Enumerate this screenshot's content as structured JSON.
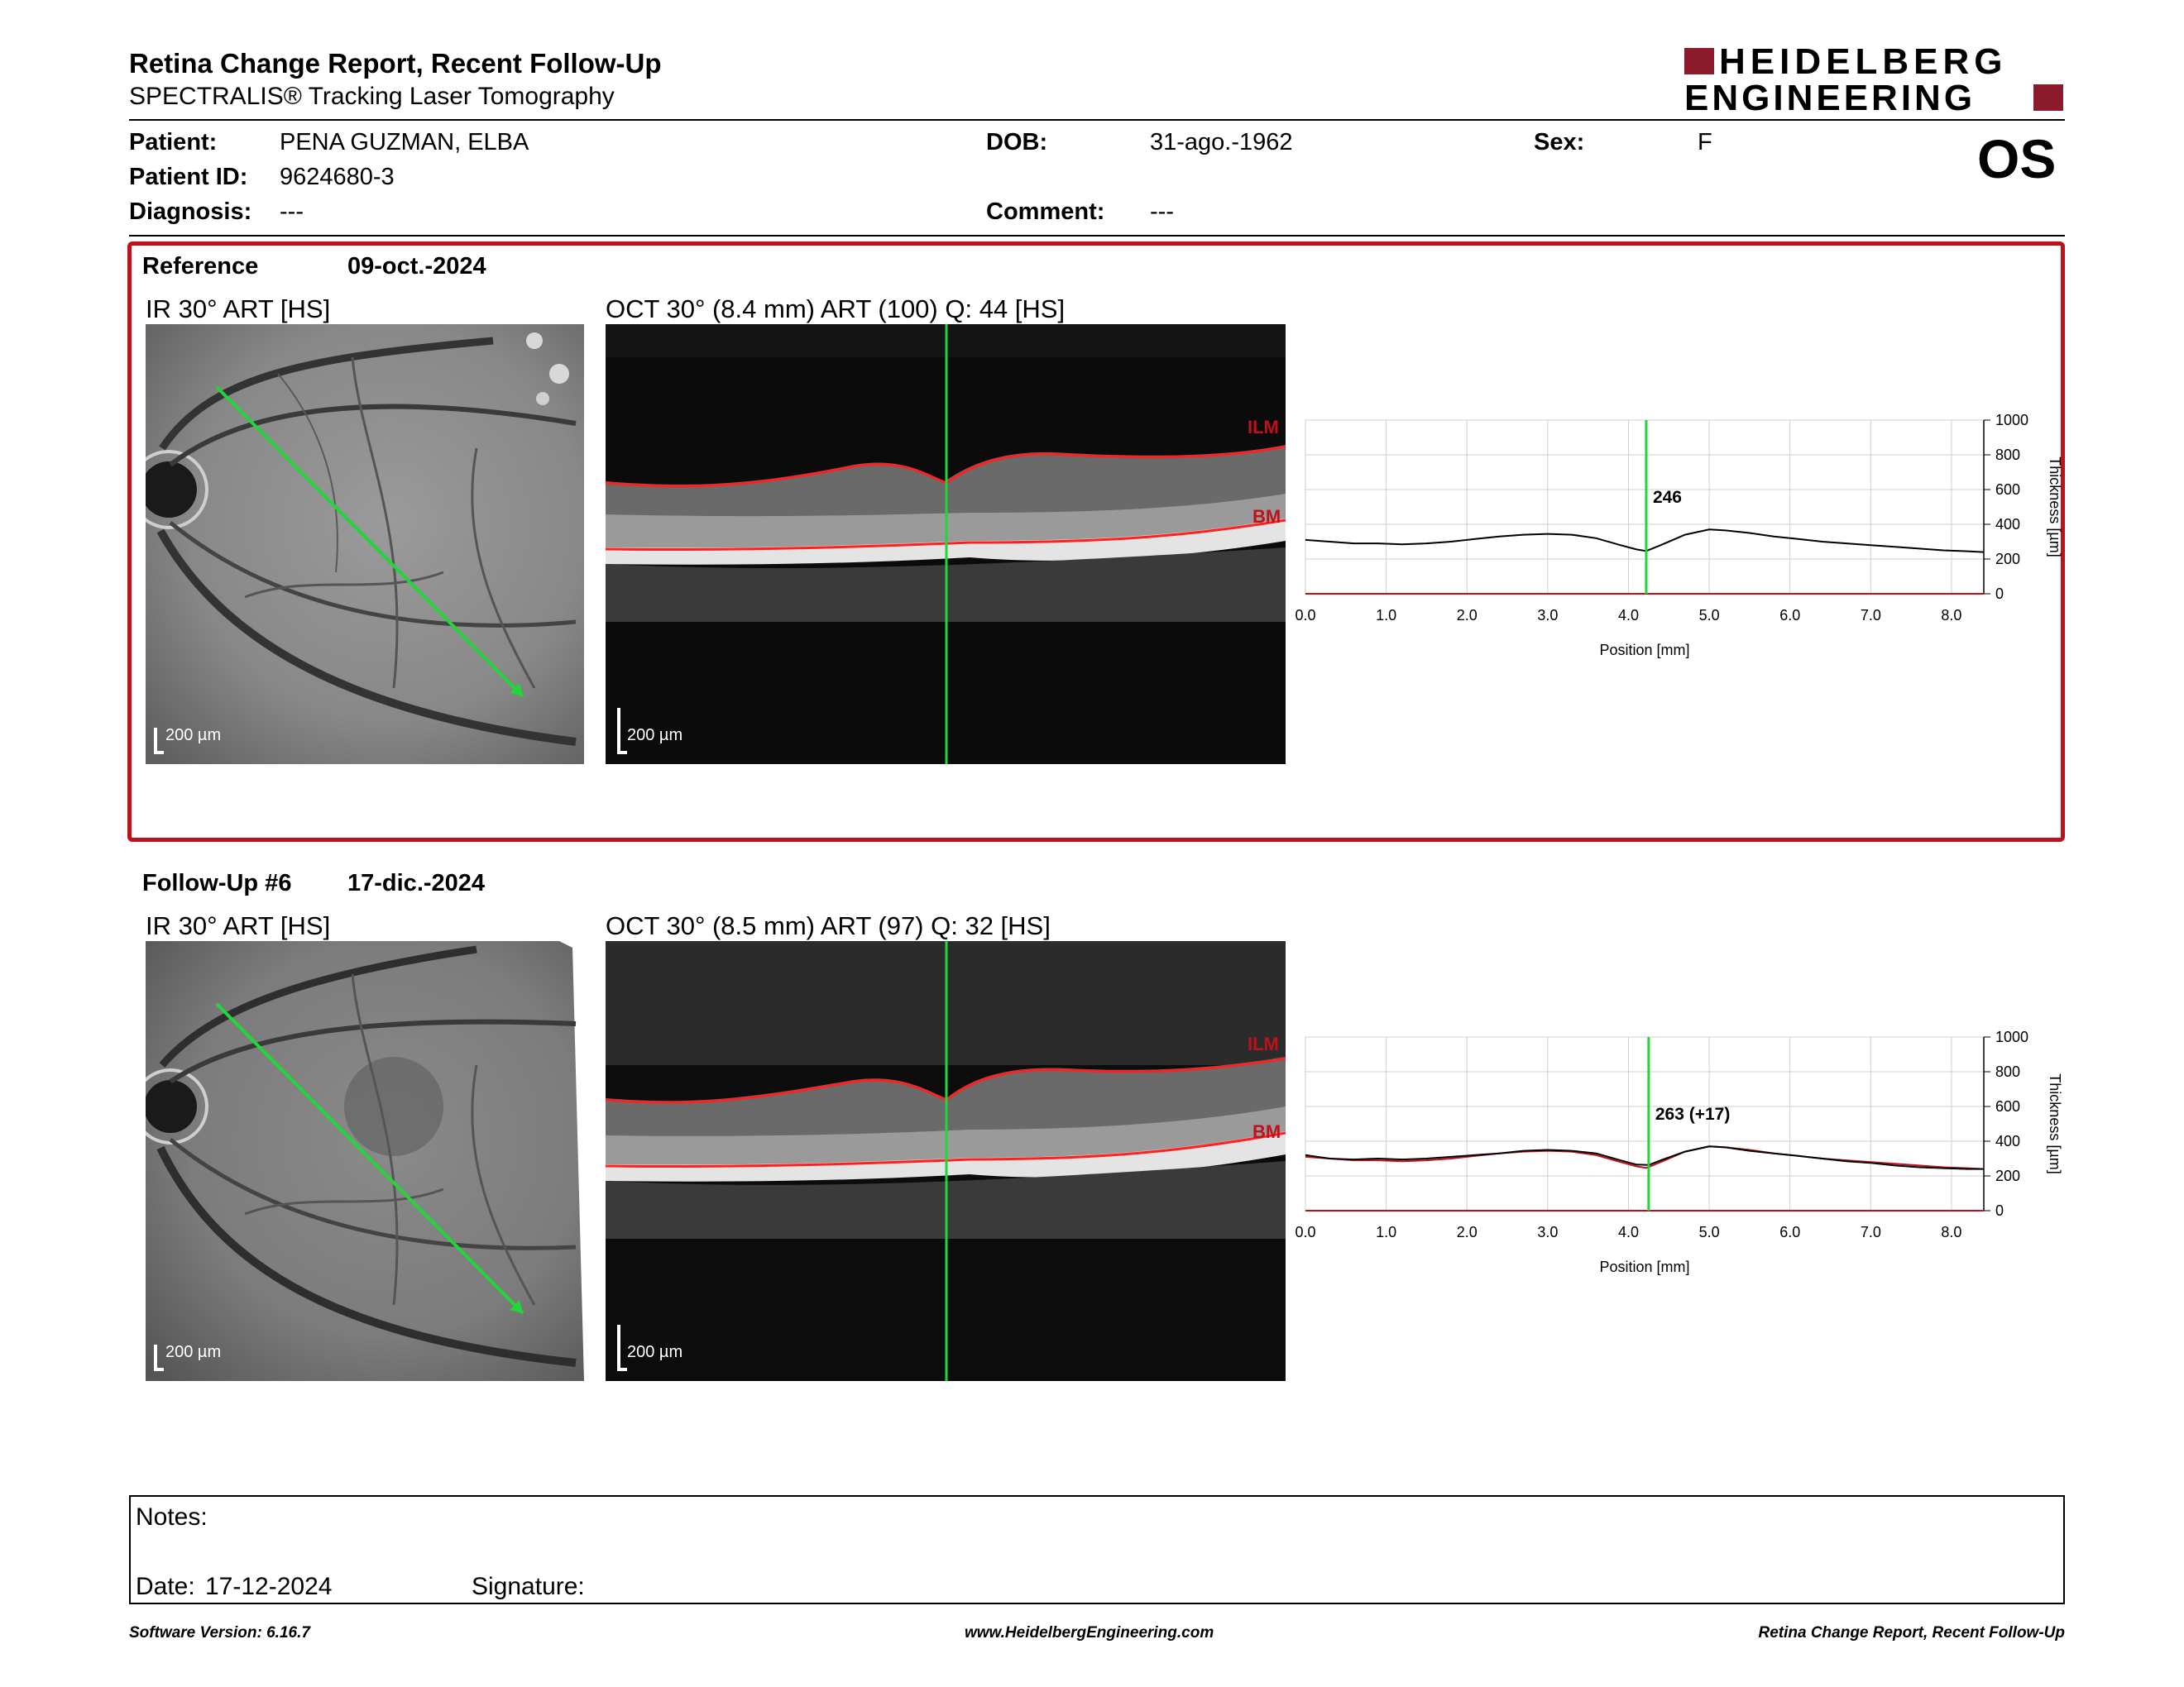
{
  "header": {
    "title": "Retina Change Report, Recent Follow-Up",
    "subtitle": "SPECTRALIS® Tracking Laser Tomography",
    "logo_line1": "HEIDELBERG",
    "logo_line2": "ENGINEERING",
    "eye": "OS"
  },
  "patient": {
    "name_label": "Patient:",
    "name": "PENA GUZMAN, ELBA",
    "id_label": "Patient ID:",
    "id": "9624680-3",
    "diagnosis_label": "Diagnosis:",
    "diagnosis": "---",
    "dob_label": "DOB:",
    "dob": "31-ago.-1962",
    "comment_label": "Comment:",
    "comment": "---",
    "sex_label": "Sex:",
    "sex": "F"
  },
  "reference": {
    "label": "Reference",
    "date": "09-oct.-2024",
    "ir_title": "IR 30° ART [HS]",
    "oct_title": "OCT 30° (8.4 mm) ART (100) Q: 44 [HS]",
    "scale": "200 µm",
    "ilm": "ILM",
    "bm": "BM",
    "accent_color": "#c0111a"
  },
  "followup": {
    "label": "Follow-Up #6",
    "date": "17-dic.-2024",
    "ir_title": "IR 30° ART [HS]",
    "oct_title": "OCT 30° (8.5 mm) ART (97) Q: 32 [HS]",
    "scale": "200 µm",
    "ilm": "ILM",
    "bm": "BM"
  },
  "chart_data": [
    {
      "type": "line",
      "xlabel": "Position [mm]",
      "ylabel": "Thickness [µm]",
      "xlim": [
        0,
        8.4
      ],
      "ylim": [
        0,
        1000
      ],
      "xticks": [
        "0.0",
        "1.0",
        "2.0",
        "3.0",
        "4.0",
        "5.0",
        "6.0",
        "7.0",
        "8.0"
      ],
      "yticks": [
        "0",
        "200",
        "400",
        "600",
        "800",
        "1000"
      ],
      "grid": true,
      "cursor_x": 4.22,
      "cursor_label": "246",
      "series": [
        {
          "color": "#000000",
          "x": [
            0,
            0.3,
            0.6,
            0.9,
            1.2,
            1.5,
            1.8,
            2.1,
            2.4,
            2.7,
            3.0,
            3.3,
            3.6,
            3.9,
            4.1,
            4.22,
            4.4,
            4.7,
            5.0,
            5.2,
            5.5,
            5.8,
            6.1,
            6.4,
            6.7,
            7.0,
            7.3,
            7.6,
            7.9,
            8.2,
            8.4
          ],
          "y": [
            310,
            300,
            290,
            290,
            285,
            290,
            300,
            315,
            330,
            340,
            345,
            340,
            320,
            280,
            255,
            246,
            280,
            340,
            370,
            365,
            350,
            330,
            315,
            300,
            290,
            280,
            270,
            260,
            250,
            245,
            240
          ]
        }
      ]
    },
    {
      "type": "line",
      "xlabel": "Position [mm]",
      "ylabel": "Thickness [µm]",
      "xlim": [
        0,
        8.4
      ],
      "ylim": [
        0,
        1000
      ],
      "xticks": [
        "0.0",
        "1.0",
        "2.0",
        "3.0",
        "4.0",
        "5.0",
        "6.0",
        "7.0",
        "8.0"
      ],
      "yticks": [
        "0",
        "200",
        "400",
        "600",
        "800",
        "1000"
      ],
      "grid": true,
      "cursor_x": 4.25,
      "cursor_label": "263 (+17)",
      "series": [
        {
          "color": "#000000",
          "x": [
            0,
            0.3,
            0.6,
            0.9,
            1.2,
            1.5,
            1.8,
            2.1,
            2.4,
            2.7,
            3.0,
            3.3,
            3.6,
            3.9,
            4.1,
            4.25,
            4.4,
            4.7,
            5.0,
            5.2,
            5.5,
            5.8,
            6.1,
            6.4,
            6.7,
            7.0,
            7.3,
            7.6,
            7.9,
            8.2,
            8.4
          ],
          "y": [
            320,
            300,
            295,
            300,
            295,
            300,
            310,
            320,
            330,
            345,
            350,
            345,
            330,
            290,
            265,
            263,
            290,
            340,
            370,
            365,
            345,
            330,
            315,
            300,
            285,
            275,
            260,
            250,
            245,
            240,
            240
          ]
        },
        {
          "color": "#c0111a",
          "x": [
            0,
            0.3,
            0.6,
            0.9,
            1.2,
            1.5,
            1.8,
            2.1,
            2.4,
            2.7,
            3.0,
            3.3,
            3.6,
            3.9,
            4.1,
            4.22,
            4.4,
            4.7,
            5.0,
            5.2,
            5.5,
            5.8,
            6.1,
            6.4,
            6.7,
            7.0,
            7.3,
            7.6,
            7.9,
            8.2,
            8.4
          ],
          "y": [
            310,
            300,
            290,
            290,
            285,
            290,
            300,
            315,
            330,
            340,
            345,
            340,
            320,
            280,
            255,
            246,
            280,
            340,
            370,
            365,
            350,
            330,
            315,
            300,
            290,
            280,
            270,
            260,
            250,
            245,
            240
          ]
        }
      ]
    }
  ],
  "notes": {
    "label": "Notes:",
    "date_label": "Date:",
    "date": "17-12-2024",
    "signature_label": "Signature:"
  },
  "footer": {
    "left": "Software Version: 6.16.7",
    "center": "www.HeidelbergEngineering.com",
    "right": "Retina Change Report, Recent Follow-Up"
  }
}
